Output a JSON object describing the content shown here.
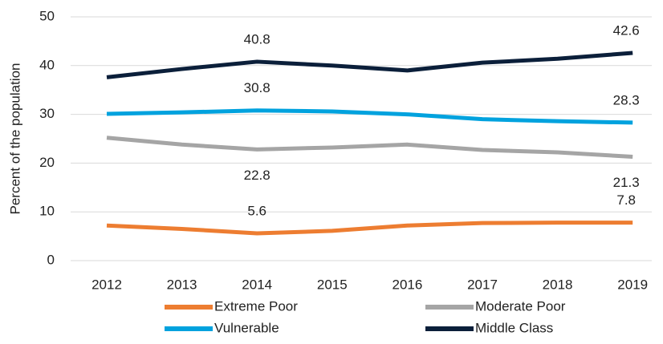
{
  "chart_data": {
    "type": "line",
    "y_label": "Percent of the population",
    "categories": [
      "2012",
      "2013",
      "2014",
      "2015",
      "2016",
      "2017",
      "2018",
      "2019"
    ],
    "series": [
      {
        "name": "Extreme Poor",
        "color": "#ed7d31",
        "values": [
          7.2,
          6.5,
          5.6,
          6.1,
          7.2,
          7.7,
          7.8,
          7.8
        ],
        "label_position": "above"
      },
      {
        "name": "Moderate Poor",
        "color": "#a5a5a5",
        "values": [
          25.2,
          23.8,
          22.8,
          23.2,
          23.8,
          22.7,
          22.2,
          21.3
        ],
        "label_position": "below"
      },
      {
        "name": "Vulnerable",
        "color": "#00a2de",
        "values": [
          30.1,
          30.4,
          30.8,
          30.6,
          30.0,
          29.0,
          28.6,
          28.3
        ],
        "label_position": "above"
      },
      {
        "name": "Middle Class",
        "color": "#0b1f3a",
        "values": [
          37.6,
          39.3,
          40.8,
          40.0,
          39.0,
          40.6,
          41.4,
          42.6
        ],
        "label_position": "above"
      }
    ],
    "labeled_points": [
      2,
      7
    ],
    "ylim": [
      0,
      50
    ],
    "yticks": [
      0,
      10,
      20,
      30,
      40,
      50
    ],
    "grid": true,
    "legend": "bottom"
  }
}
